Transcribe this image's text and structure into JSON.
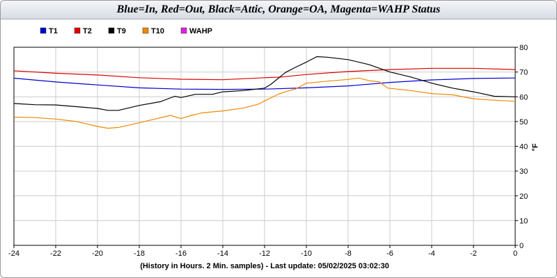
{
  "chart_data": {
    "type": "line",
    "title": "Blue=In, Red=Out, Black=Attic, Orange=OA, Magenta=WAHP Status",
    "xlabel": "(History in Hours. 2 Min. samples) - Last update: 05/02/2025 03:02:30",
    "ylabel": "°F",
    "xlim": [
      -24,
      0
    ],
    "ylim": [
      0,
      80
    ],
    "x_ticks": [
      "-24",
      "-22",
      "-20",
      "-18",
      "-16",
      "-14",
      "-12",
      "-10",
      "-8",
      "-6",
      "-4",
      "-2",
      "0"
    ],
    "y_ticks": [
      "0",
      "10",
      "20",
      "30",
      "40",
      "50",
      "60",
      "70",
      "80"
    ],
    "grid": true,
    "legend_position": "top-left",
    "series": [
      {
        "name": "T1",
        "color": "#0000cc",
        "points": [
          [
            -24,
            67.5
          ],
          [
            -22,
            66
          ],
          [
            -20,
            64.8
          ],
          [
            -18,
            63.6
          ],
          [
            -16,
            63.1
          ],
          [
            -14,
            63
          ],
          [
            -12,
            63.1
          ],
          [
            -10,
            63.6
          ],
          [
            -8,
            64.4
          ],
          [
            -6,
            65.8
          ],
          [
            -4,
            66.8
          ],
          [
            -2,
            67.4
          ],
          [
            0,
            67.6
          ]
        ]
      },
      {
        "name": "T2",
        "color": "#dd0000",
        "points": [
          [
            -24,
            70.5
          ],
          [
            -22,
            69.5
          ],
          [
            -20,
            68.8
          ],
          [
            -18,
            67.7
          ],
          [
            -16,
            67.1
          ],
          [
            -14,
            66.9
          ],
          [
            -12,
            67.7
          ],
          [
            -11.2,
            68
          ],
          [
            -10,
            69
          ],
          [
            -8,
            70.2
          ],
          [
            -6,
            71
          ],
          [
            -4,
            71.5
          ],
          [
            -2,
            71.5
          ],
          [
            0,
            71
          ]
        ]
      },
      {
        "name": "T9",
        "color": "#000000",
        "points": [
          [
            -24,
            57.3
          ],
          [
            -23,
            56.8
          ],
          [
            -22,
            56.7
          ],
          [
            -21,
            56
          ],
          [
            -20,
            55.3
          ],
          [
            -19.5,
            54.5
          ],
          [
            -19,
            54.5
          ],
          [
            -18,
            56.5
          ],
          [
            -17,
            58
          ],
          [
            -16.3,
            60.2
          ],
          [
            -16,
            59.7
          ],
          [
            -15.3,
            61
          ],
          [
            -14.5,
            61
          ],
          [
            -14,
            62
          ],
          [
            -13,
            62.5
          ],
          [
            -12,
            63.5
          ],
          [
            -11.7,
            65
          ],
          [
            -11,
            69.8
          ],
          [
            -10.5,
            72
          ],
          [
            -10,
            74
          ],
          [
            -9.5,
            76.2
          ],
          [
            -9,
            76
          ],
          [
            -8,
            75
          ],
          [
            -7,
            73
          ],
          [
            -6,
            70
          ],
          [
            -5,
            68
          ],
          [
            -4,
            65.5
          ],
          [
            -3,
            63.5
          ],
          [
            -2,
            62
          ],
          [
            -1,
            60.2
          ],
          [
            0,
            60
          ]
        ]
      },
      {
        "name": "T10",
        "color": "#ee8800",
        "points": [
          [
            -24,
            51.8
          ],
          [
            -23,
            51.6
          ],
          [
            -22,
            51
          ],
          [
            -21,
            50
          ],
          [
            -20.5,
            49
          ],
          [
            -20,
            48
          ],
          [
            -19.5,
            47.3
          ],
          [
            -19,
            47.6
          ],
          [
            -18,
            49.5
          ],
          [
            -17.5,
            50.5
          ],
          [
            -16.5,
            52.5
          ],
          [
            -16,
            51.2
          ],
          [
            -15.5,
            52.5
          ],
          [
            -15,
            53.5
          ],
          [
            -14,
            54.3
          ],
          [
            -13,
            55.5
          ],
          [
            -12.3,
            57
          ],
          [
            -12,
            58.3
          ],
          [
            -11.3,
            61.2
          ],
          [
            -11,
            62
          ],
          [
            -10.5,
            63.2
          ],
          [
            -10,
            65.5
          ],
          [
            -9,
            66.3
          ],
          [
            -8,
            67
          ],
          [
            -7.5,
            67.6
          ],
          [
            -7,
            66.5
          ],
          [
            -6.5,
            66
          ],
          [
            -6.1,
            63.5
          ],
          [
            -5,
            62.5
          ],
          [
            -4,
            61.3
          ],
          [
            -3,
            60.8
          ],
          [
            -2,
            59.2
          ],
          [
            -1,
            58.6
          ],
          [
            0,
            58.2
          ]
        ]
      },
      {
        "name": "WAHP",
        "color": "#dd22dd",
        "points": []
      }
    ]
  }
}
